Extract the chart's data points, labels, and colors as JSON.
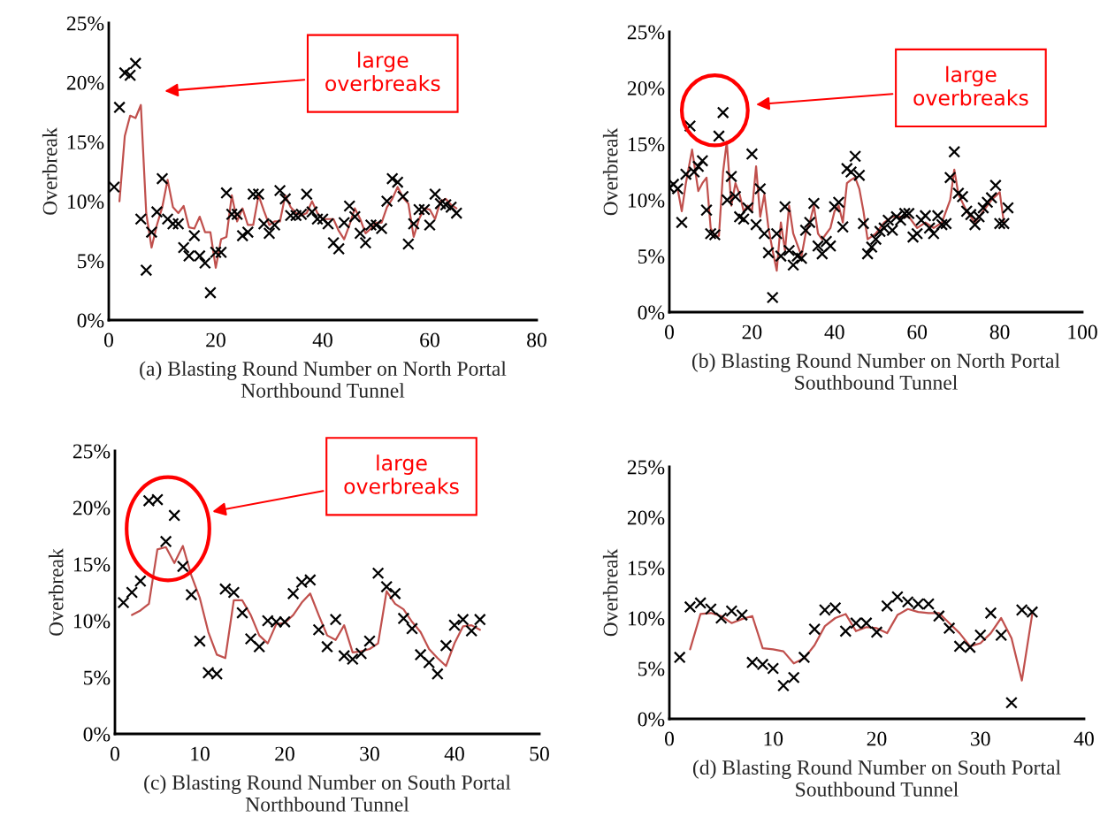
{
  "chart_data": [
    {
      "type": "scatter",
      "xlabel": "(a) Blasting Round Number on North Portal\nNorthbound Tunnel",
      "ylabel": "Overbreak",
      "xlim": [
        0,
        80
      ],
      "xticks": [
        0,
        20,
        40,
        60,
        80
      ],
      "ylim": [
        0,
        25
      ],
      "yticks": [
        {
          "value": 0,
          "label": "0%"
        },
        {
          "value": 5,
          "label": "5%"
        },
        {
          "value": 10,
          "label": "10%"
        },
        {
          "value": 15,
          "label": "15%"
        },
        {
          "value": 20,
          "label": "20%"
        },
        {
          "value": 25,
          "label": "25%"
        }
      ],
      "grid": false,
      "annotations": [
        "large\noverbreaks"
      ],
      "series": [
        {
          "marker": "cross",
          "color": "#000000",
          "x": [
            1,
            2,
            3,
            4,
            5,
            6,
            7,
            8,
            9,
            10,
            11,
            12,
            13,
            14,
            15,
            16,
            17,
            18,
            19,
            20,
            21,
            22,
            23,
            24,
            25,
            26,
            27,
            28,
            29,
            30,
            31,
            32,
            33,
            34,
            35,
            36,
            37,
            38,
            39,
            40,
            41,
            42,
            43,
            44,
            45,
            46,
            47,
            48,
            49,
            50,
            51,
            52,
            53,
            54,
            55,
            56,
            57,
            58,
            59,
            60,
            61,
            62,
            63,
            64,
            65
          ],
          "values": [
            11.2,
            17.9,
            20.8,
            20.6,
            21.6,
            8.5,
            4.2,
            7.4,
            9.1,
            11.9,
            8.5,
            8.1,
            8.1,
            6.1,
            5.4,
            7.1,
            5.4,
            4.8,
            2.3,
            5.7,
            5.7,
            10.7,
            8.9,
            8.9,
            7.1,
            7.4,
            10.6,
            10.6,
            8.1,
            7.3,
            8.0,
            10.9,
            10.2,
            8.8,
            8.8,
            8.9,
            10.6,
            9.1,
            8.5,
            8.5,
            8.1,
            6.5,
            6.0,
            8.2,
            9.6,
            8.7,
            7.3,
            6.5,
            8.0,
            8.0,
            7.7,
            10.0,
            11.9,
            11.6,
            10.4,
            6.4,
            8.1,
            9.3,
            9.3,
            8.0,
            10.6,
            9.8,
            9.7,
            9.5,
            9.0
          ]
        },
        {
          "type": "line",
          "marker": "none",
          "line_style": "solid",
          "color": "#c0504d",
          "x": [
            2,
            3,
            4,
            5,
            6,
            7,
            8,
            9,
            10,
            11,
            12,
            13,
            14,
            15,
            16,
            17,
            18,
            19,
            20,
            21,
            22,
            23,
            24,
            25,
            26,
            27,
            28,
            29,
            30,
            31,
            32,
            33,
            34,
            35,
            36,
            37,
            38,
            39,
            40,
            41,
            42,
            43,
            44,
            45,
            46,
            47,
            48,
            49,
            50,
            51,
            52,
            53,
            54,
            55,
            56,
            57,
            58,
            59,
            60,
            61,
            62,
            63,
            64,
            65
          ],
          "values": [
            10.0,
            15.5,
            17.2,
            17.0,
            18.1,
            9.0,
            6.1,
            8.0,
            9.5,
            11.8,
            9.5,
            9.0,
            9.6,
            7.8,
            7.7,
            8.7,
            7.4,
            7.4,
            4.4,
            6.8,
            7.0,
            10.5,
            8.3,
            9.4,
            8.0,
            8.0,
            10.5,
            9.2,
            8.0,
            8.3,
            8.3,
            10.5,
            9.5,
            9.0,
            8.8,
            9.0,
            10.0,
            9.0,
            8.5,
            8.5,
            8.5,
            7.5,
            6.8,
            8.0,
            9.4,
            8.5,
            7.3,
            7.7,
            8.2,
            8.2,
            9.5,
            10.2,
            11.2,
            10.3,
            9.8,
            7.0,
            8.5,
            9.4,
            9.3,
            8.5,
            10.0,
            10.2,
            9.7,
            9.4
          ]
        }
      ]
    },
    {
      "type": "scatter",
      "xlabel": "(b) Blasting Round Number on North Portal\nSouthbound Tunnel",
      "ylabel": "Overbreak",
      "xlim": [
        0,
        100
      ],
      "xticks": [
        0,
        20,
        40,
        60,
        80,
        100
      ],
      "ylim": [
        0,
        25
      ],
      "yticks": [
        {
          "value": 0,
          "label": "0%"
        },
        {
          "value": 5,
          "label": "5%"
        },
        {
          "value": 10,
          "label": "10%"
        },
        {
          "value": 15,
          "label": "15%"
        },
        {
          "value": 20,
          "label": "20%"
        },
        {
          "value": 25,
          "label": "25%"
        }
      ],
      "grid": false,
      "annotations": [
        "large\noverbreaks"
      ],
      "series": [
        {
          "marker": "cross",
          "color": "#000000",
          "x": [
            0,
            1,
            2,
            3,
            4,
            5,
            6,
            7,
            8,
            9,
            10,
            11,
            12,
            13,
            14,
            15,
            16,
            17,
            18,
            19,
            20,
            21,
            22,
            23,
            24,
            25,
            26,
            27,
            28,
            29,
            30,
            31,
            32,
            33,
            34,
            35,
            36,
            37,
            38,
            39,
            40,
            41,
            42,
            43,
            44,
            45,
            46,
            47,
            48,
            49,
            50,
            51,
            52,
            53,
            54,
            55,
            56,
            57,
            58,
            59,
            60,
            61,
            62,
            63,
            64,
            65,
            66,
            67,
            68,
            69,
            70,
            71,
            72,
            73,
            74,
            75,
            76,
            77,
            78,
            79,
            80,
            81,
            82
          ],
          "values": [
            11.1,
            11.4,
            11.0,
            8.0,
            12.3,
            16.6,
            12.5,
            13.0,
            13.5,
            9.1,
            7.0,
            6.9,
            15.7,
            17.8,
            10.0,
            12.1,
            10.3,
            8.5,
            8.3,
            9.3,
            14.1,
            7.8,
            11.0,
            7.0,
            5.3,
            1.3,
            7.0,
            5.0,
            9.4,
            5.5,
            4.2,
            5.0,
            4.8,
            7.3,
            8.0,
            9.7,
            5.9,
            5.2,
            6.3,
            5.9,
            9.4,
            9.8,
            7.6,
            12.8,
            12.5,
            13.9,
            12.2,
            7.9,
            5.2,
            5.8,
            6.5,
            7.2,
            7.5,
            8.2,
            7.3,
            8.5,
            8.2,
            8.8,
            8.8,
            6.7,
            7.0,
            8.2,
            8.6,
            7.5,
            7.0,
            8.6,
            7.8,
            7.9,
            12.0,
            14.3,
            10.6,
            10.3,
            9.0,
            8.7,
            7.8,
            8.5,
            9.3,
            9.8,
            10.2,
            11.3,
            7.9,
            7.9,
            9.3
          ]
        },
        {
          "type": "line",
          "marker": "none",
          "line_style": "solid",
          "color": "#c0504d",
          "x": [
            2,
            3,
            4,
            5.5,
            7,
            8,
            9,
            10,
            11,
            12,
            13,
            13.9,
            15,
            16,
            17,
            18,
            19,
            20,
            21,
            22,
            23,
            24,
            25,
            26,
            27,
            28,
            29,
            30,
            31,
            32,
            33,
            34,
            35,
            36,
            37,
            38,
            39,
            40,
            41,
            42,
            43,
            44,
            45,
            46,
            47,
            48,
            50,
            52,
            54,
            56,
            58,
            60,
            62,
            64,
            66,
            68,
            69,
            70,
            72,
            74,
            76,
            78,
            80,
            81
          ],
          "values": [
            11.0,
            9.0,
            11.5,
            14.5,
            10.8,
            11.5,
            12.0,
            7.5,
            6.8,
            6.8,
            12.5,
            15.2,
            9.5,
            11.5,
            10.5,
            9.0,
            9.5,
            9.0,
            13.0,
            8.5,
            10.5,
            7.5,
            5.5,
            3.7,
            8.0,
            5.5,
            9.5,
            7.0,
            6.0,
            5.0,
            7.0,
            8.0,
            9.5,
            7.0,
            6.5,
            7.0,
            7.5,
            9.0,
            9.5,
            8.0,
            11.5,
            11.8,
            12.0,
            11.0,
            9.0,
            6.5,
            7.0,
            8.0,
            8.5,
            8.5,
            8.5,
            7.5,
            8.0,
            7.5,
            8.0,
            10.0,
            12.7,
            10.5,
            9.0,
            8.0,
            9.0,
            10.0,
            10.7,
            8.0
          ]
        }
      ]
    },
    {
      "type": "scatter",
      "xlabel": "(c) Blasting Round Number on South Portal\nNorthbound Tunnel",
      "ylabel": "Overbreak",
      "xlim": [
        0,
        50
      ],
      "xticks": [
        0,
        10,
        20,
        30,
        40,
        50
      ],
      "ylim": [
        0,
        25
      ],
      "yticks": [
        {
          "value": 0,
          "label": "0%"
        },
        {
          "value": 5,
          "label": "5%"
        },
        {
          "value": 10,
          "label": "10%"
        },
        {
          "value": 15,
          "label": "15%"
        },
        {
          "value": 20,
          "label": "20%"
        },
        {
          "value": 25,
          "label": "25%"
        }
      ],
      "grid": false,
      "annotations": [
        "large\noverbreaks"
      ],
      "series": [
        {
          "marker": "cross",
          "color": "#000000",
          "x": [
            1,
            2,
            3,
            4,
            5,
            6,
            7,
            8,
            9,
            10,
            11,
            12,
            13,
            14,
            15,
            16,
            17,
            18,
            19,
            20,
            21,
            22,
            23,
            24,
            25,
            26,
            27,
            28,
            29,
            30,
            31,
            32,
            33,
            34,
            35,
            36,
            37,
            38,
            39,
            40,
            41,
            42,
            43
          ],
          "values": [
            11.6,
            12.5,
            13.5,
            20.6,
            20.7,
            17.0,
            19.3,
            14.8,
            12.3,
            8.2,
            5.4,
            5.3,
            12.8,
            12.5,
            10.7,
            8.4,
            7.7,
            10.0,
            9.9,
            9.9,
            12.4,
            13.4,
            13.6,
            9.2,
            7.7,
            10.1,
            6.9,
            6.6,
            7.1,
            8.2,
            14.2,
            13.0,
            12.4,
            10.2,
            9.3,
            7.0,
            6.3,
            5.3,
            7.8,
            9.6,
            10.1,
            9.1,
            10.1
          ]
        },
        {
          "type": "line",
          "marker": "none",
          "line_style": "solid",
          "color": "#c0504d",
          "x": [
            2,
            3,
            4,
            5,
            6,
            7,
            8,
            9,
            10,
            11,
            12,
            13,
            14,
            15,
            16,
            17,
            18,
            19,
            20,
            21,
            22,
            23,
            24,
            25,
            26,
            27,
            28,
            29,
            30,
            31,
            32,
            33,
            34,
            35,
            36,
            37,
            38,
            39,
            40,
            41,
            42,
            43
          ],
          "values": [
            10.5,
            10.9,
            11.5,
            16.3,
            16.5,
            15.1,
            16.6,
            14.0,
            12.0,
            9.0,
            7.0,
            6.7,
            11.8,
            11.8,
            10.5,
            8.7,
            8.0,
            9.7,
            9.8,
            10.5,
            11.6,
            12.4,
            10.5,
            8.7,
            8.3,
            9.6,
            7.2,
            7.3,
            7.5,
            8.0,
            12.6,
            11.5,
            11.0,
            9.9,
            9.0,
            7.5,
            6.7,
            6.0,
            8.0,
            9.5,
            9.6,
            9.2
          ]
        }
      ]
    },
    {
      "type": "scatter",
      "xlabel": "(d) Blasting Round Number on South Portal\nSouthbound Tunnel",
      "ylabel": "Overbreak",
      "xlim": [
        0,
        40
      ],
      "xticks": [
        0,
        10,
        20,
        30,
        40
      ],
      "ylim": [
        0,
        25
      ],
      "yticks": [
        {
          "value": 0,
          "label": "0%"
        },
        {
          "value": 5,
          "label": "5%"
        },
        {
          "value": 10,
          "label": "10%"
        },
        {
          "value": 15,
          "label": "15%"
        },
        {
          "value": 20,
          "label": "20%"
        },
        {
          "value": 25,
          "label": "25%"
        }
      ],
      "grid": false,
      "series": [
        {
          "marker": "cross",
          "color": "#000000",
          "x": [
            1,
            2,
            3,
            4,
            5,
            6,
            7,
            8,
            9,
            10,
            11,
            12,
            13,
            14,
            15,
            16,
            17,
            18,
            19,
            20,
            21,
            22,
            23,
            24,
            25,
            26,
            27,
            28,
            29,
            30,
            31,
            32,
            33,
            34,
            35
          ],
          "values": [
            6.1,
            11.1,
            11.5,
            10.9,
            10.0,
            10.7,
            10.3,
            5.6,
            5.4,
            5.0,
            3.3,
            4.1,
            6.1,
            8.9,
            10.8,
            11.0,
            8.7,
            9.5,
            9.5,
            8.6,
            11.2,
            12.1,
            11.6,
            11.4,
            11.4,
            10.2,
            9.0,
            7.2,
            7.1,
            8.3,
            10.5,
            8.3,
            1.6,
            10.8,
            10.6
          ]
        },
        {
          "type": "line",
          "marker": "none",
          "line_style": "solid",
          "color": "#c0504d",
          "x": [
            2,
            3,
            4,
            5,
            6,
            7,
            8,
            9,
            10,
            11,
            12,
            13,
            14,
            15,
            16,
            17,
            18,
            19,
            20,
            21,
            22,
            23,
            24,
            25,
            26,
            27,
            28,
            29,
            30,
            31,
            32,
            33,
            34,
            35
          ],
          "values": [
            6.9,
            10.4,
            10.5,
            10.2,
            9.5,
            9.9,
            10.2,
            7.0,
            6.9,
            6.7,
            5.5,
            6.0,
            7.3,
            9.2,
            10.0,
            10.4,
            8.7,
            9.1,
            9.0,
            8.5,
            10.3,
            10.9,
            10.6,
            10.5,
            10.5,
            9.5,
            8.5,
            7.2,
            7.5,
            8.5,
            10.0,
            8.0,
            3.8,
            10.4
          ]
        }
      ]
    }
  ]
}
